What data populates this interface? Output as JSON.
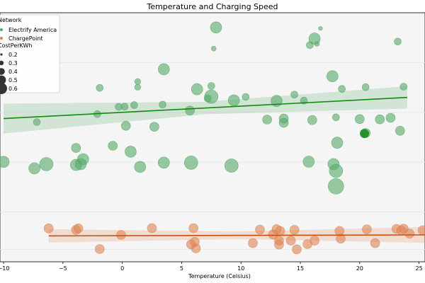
{
  "chart_data": {
    "type": "scatter",
    "title": "Temperature and Charging Speed",
    "xlabel": "Temperature (Celsius)",
    "ylabel": "",
    "xlim": [
      -10.3,
      25.5
    ],
    "ylim": [
      0,
      100
    ],
    "xticks": [
      -10,
      -5,
      0,
      5,
      10,
      15,
      20,
      25
    ],
    "grid": "horizontal",
    "background": "#f5f5f5",
    "legend": {
      "placement": "top-left",
      "network_title": "Network",
      "size_title": "CostPerKWh",
      "size_entries": [
        "0.2",
        "0.3",
        "0.4",
        "0.5",
        "0.6"
      ]
    },
    "series": [
      {
        "name": "Electrify America",
        "color": "#55a868",
        "line_color": "#138a13",
        "trend": {
          "x": [
            -10,
            24
          ],
          "y": [
            57.5,
            66
          ]
        },
        "band_half_width": [
          6,
          4.5
        ],
        "points": [
          [
            -10,
            40.1,
            0.4
          ],
          [
            -7.4,
            37.5,
            0.4
          ],
          [
            -7.2,
            56.1,
            0.2
          ],
          [
            -6.4,
            39.2,
            0.5
          ],
          [
            -3.9,
            45.7,
            0.3
          ],
          [
            -3.9,
            38.9,
            0.4
          ],
          [
            -3.5,
            39.2,
            0.4
          ],
          [
            -3.3,
            41.2,
            0.4
          ],
          [
            -2.1,
            59.3,
            0.2
          ],
          [
            -1.9,
            69.8,
            0.2
          ],
          [
            -0.8,
            46.6,
            0.3
          ],
          [
            -0.3,
            62.2,
            0.2
          ],
          [
            0.2,
            62.3,
            0.2
          ],
          [
            0.3,
            54.6,
            0.3
          ],
          [
            0.7,
            44.2,
            0.4
          ],
          [
            1,
            62.9,
            0.2
          ],
          [
            1.3,
            72.4,
            0.15
          ],
          [
            1.3,
            70.1,
            0.15
          ],
          [
            1.5,
            38.1,
            0.4
          ],
          [
            2.7,
            54.2,
            0.3
          ],
          [
            3.4,
            63.1,
            0.2
          ],
          [
            3.5,
            77.3,
            0.4
          ],
          [
            3.5,
            39.8,
            0.4
          ],
          [
            5.7,
            60.7,
            0.3
          ],
          [
            5.8,
            39.8,
            0.5
          ],
          [
            6.3,
            69.3,
            0.4
          ],
          [
            7.2,
            65.6,
            0.2
          ],
          [
            7.5,
            70.6,
            0.2
          ],
          [
            7.5,
            66.3,
            0.5
          ],
          [
            7.7,
            85.6,
            0.1
          ],
          [
            7.9,
            94.1,
            0.4
          ],
          [
            9.2,
            38.6,
            0.5
          ],
          [
            9.4,
            64.8,
            0.4
          ],
          [
            10.4,
            66.2,
            0.2
          ],
          [
            12.2,
            57.1,
            0.3
          ],
          [
            13.0,
            64.6,
            0.4
          ],
          [
            13.6,
            57.5,
            0.3
          ],
          [
            13.6,
            55.8,
            0.3
          ],
          [
            14.5,
            67.1,
            0.2
          ],
          [
            15.3,
            64.7,
            0.2
          ],
          [
            15.7,
            40.2,
            0.4
          ],
          [
            15.8,
            87,
            0.2
          ],
          [
            16,
            56.9,
            0.3
          ],
          [
            16.2,
            89.6,
            0.4
          ],
          [
            16.4,
            87.5,
            0.1
          ],
          [
            16.7,
            93.7,
            0.05
          ],
          [
            17.7,
            74.5,
            0.4
          ],
          [
            17.8,
            39.2,
            0.4
          ],
          [
            18.0,
            58,
            0.2
          ],
          [
            18.1,
            47.8,
            0.4
          ],
          [
            18.5,
            69.4,
            0.2
          ],
          [
            18,
            36.5,
            0.5
          ],
          [
            18,
            30.3,
            0.6
          ],
          [
            20,
            57.3,
            0.3
          ],
          [
            20.5,
            51.7,
            0.3
          ],
          [
            20.5,
            70.1,
            0.2
          ],
          [
            21.7,
            57.2,
            0.3
          ],
          [
            22.6,
            57.8,
            0.3
          ],
          [
            23.2,
            88.4,
            0.2
          ],
          [
            23.4,
            52.6,
            0.3
          ],
          [
            23.7,
            70.3,
            0.2
          ]
        ],
        "highlight": [
          20.4,
          51.5,
          0.3
        ]
      },
      {
        "name": "ChargePoint",
        "color": "#dd8452",
        "line_color": "#c84e0e",
        "trend": {
          "x": [
            -6.2,
            25.5
          ],
          "y": [
            10.4,
            10.8
          ]
        },
        "band_half_width": [
          2.7,
          3.2
        ],
        "points": [
          [
            -6.2,
            13.4,
            0.3
          ],
          [
            -3.9,
            12.8,
            0.3
          ],
          [
            -3.7,
            13.4,
            0.3
          ],
          [
            -1.9,
            5.1,
            0.3
          ],
          [
            -0.1,
            10.8,
            0.3
          ],
          [
            2.5,
            13.5,
            0.3
          ],
          [
            5.8,
            7.0,
            0.3
          ],
          [
            6.0,
            13.5,
            0.3
          ],
          [
            6.1,
            8.0,
            0.3
          ],
          [
            6.2,
            5.4,
            0.3
          ],
          [
            11.0,
            7.5,
            0.3
          ],
          [
            11.6,
            12.9,
            0.3
          ],
          [
            12.7,
            11.0,
            0.3
          ],
          [
            13.0,
            13.1,
            0.3
          ],
          [
            13.2,
            8.5,
            0.3
          ],
          [
            13.2,
            6.9,
            0.3
          ],
          [
            13.3,
            12.4,
            0.3
          ],
          [
            14.2,
            8.5,
            0.3
          ],
          [
            14.5,
            12.8,
            0.3
          ],
          [
            14.7,
            5.0,
            0.3
          ],
          [
            15.6,
            7.1,
            0.3
          ],
          [
            16.2,
            8.5,
            0.3
          ],
          [
            18.3,
            12.4,
            0.3
          ],
          [
            18.4,
            9.3,
            0.3
          ],
          [
            20.6,
            13.0,
            0.3
          ],
          [
            21.3,
            7.5,
            0.3
          ],
          [
            23.1,
            13.2,
            0.3
          ],
          [
            23.5,
            12.6,
            0.3
          ],
          [
            23.7,
            13.3,
            0.3
          ],
          [
            24.2,
            11.3,
            0.3
          ],
          [
            25.3,
            12.6,
            0.3
          ]
        ]
      }
    ]
  }
}
